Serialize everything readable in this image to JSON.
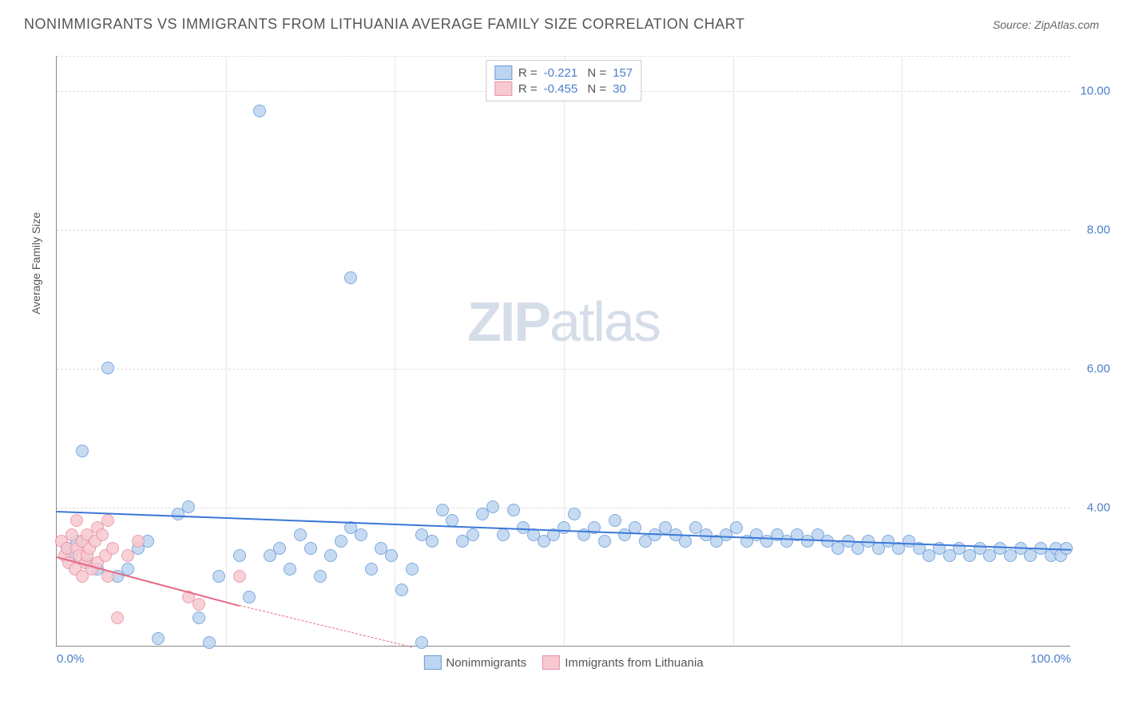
{
  "header": {
    "title": "NONIMMIGRANTS VS IMMIGRANTS FROM LITHUANIA AVERAGE FAMILY SIZE CORRELATION CHART",
    "source": "Source: ZipAtlas.com"
  },
  "watermark": {
    "zip": "ZIP",
    "atlas": "atlas"
  },
  "chart": {
    "type": "scatter",
    "ylabel": "Average Family Size",
    "xlim": [
      0,
      100
    ],
    "ylim": [
      2,
      10.5
    ],
    "yticks": [
      4,
      6,
      8,
      10
    ],
    "ytick_labels": [
      "4.00",
      "6.00",
      "8.00",
      "10.00"
    ],
    "xticks": [
      0,
      16.67,
      33.33,
      50,
      66.67,
      83.33,
      100
    ],
    "xtick_labels_shown": {
      "0": "0.0%",
      "100": "100.0%"
    },
    "background_color": "#ffffff",
    "grid_color": "#dddddd",
    "axis_color": "#888888",
    "marker_radius": 8,
    "series": {
      "nonimmigrants": {
        "label": "Nonimmigrants",
        "fill_color": "#bdd5f0",
        "stroke_color": "#6a9ad8",
        "trend_color": "#3b78d8",
        "R": "-0.221",
        "N": "157",
        "trend": {
          "x0": 0,
          "y0": 3.95,
          "x1": 100,
          "y1": 3.4
        },
        "points": [
          [
            1,
            3.4
          ],
          [
            1.5,
            3.3
          ],
          [
            2,
            3.5
          ],
          [
            2.5,
            4.8
          ],
          [
            3,
            3.2
          ],
          [
            4,
            3.1
          ],
          [
            5,
            6.0
          ],
          [
            6,
            3.0
          ],
          [
            7,
            3.1
          ],
          [
            8,
            3.4
          ],
          [
            9,
            3.5
          ],
          [
            10,
            2.1
          ],
          [
            12,
            3.9
          ],
          [
            13,
            4.0
          ],
          [
            14,
            2.4
          ],
          [
            15,
            2.05
          ],
          [
            16,
            3.0
          ],
          [
            18,
            3.3
          ],
          [
            19,
            2.7
          ],
          [
            20,
            9.7
          ],
          [
            21,
            3.3
          ],
          [
            22,
            3.4
          ],
          [
            23,
            3.1
          ],
          [
            24,
            3.6
          ],
          [
            25,
            3.4
          ],
          [
            26,
            3.0
          ],
          [
            27,
            3.3
          ],
          [
            28,
            3.5
          ],
          [
            29,
            3.7
          ],
          [
            29,
            7.3
          ],
          [
            30,
            3.6
          ],
          [
            31,
            3.1
          ],
          [
            32,
            3.4
          ],
          [
            33,
            3.3
          ],
          [
            34,
            2.8
          ],
          [
            35,
            3.1
          ],
          [
            36,
            2.05
          ],
          [
            36,
            3.6
          ],
          [
            37,
            3.5
          ],
          [
            38,
            3.95
          ],
          [
            39,
            3.8
          ],
          [
            40,
            3.5
          ],
          [
            41,
            3.6
          ],
          [
            42,
            3.9
          ],
          [
            43,
            4.0
          ],
          [
            44,
            3.6
          ],
          [
            45,
            3.95
          ],
          [
            46,
            3.7
          ],
          [
            47,
            3.6
          ],
          [
            48,
            3.5
          ],
          [
            49,
            3.6
          ],
          [
            50,
            3.7
          ],
          [
            51,
            3.9
          ],
          [
            52,
            3.6
          ],
          [
            53,
            3.7
          ],
          [
            54,
            3.5
          ],
          [
            55,
            3.8
          ],
          [
            56,
            3.6
          ],
          [
            57,
            3.7
          ],
          [
            58,
            3.5
          ],
          [
            59,
            3.6
          ],
          [
            60,
            3.7
          ],
          [
            61,
            3.6
          ],
          [
            62,
            3.5
          ],
          [
            63,
            3.7
          ],
          [
            64,
            3.6
          ],
          [
            65,
            3.5
          ],
          [
            66,
            3.6
          ],
          [
            67,
            3.7
          ],
          [
            68,
            3.5
          ],
          [
            69,
            3.6
          ],
          [
            70,
            3.5
          ],
          [
            71,
            3.6
          ],
          [
            72,
            3.5
          ],
          [
            73,
            3.6
          ],
          [
            74,
            3.5
          ],
          [
            75,
            3.6
          ],
          [
            76,
            3.5
          ],
          [
            77,
            3.4
          ],
          [
            78,
            3.5
          ],
          [
            79,
            3.4
          ],
          [
            80,
            3.5
          ],
          [
            81,
            3.4
          ],
          [
            82,
            3.5
          ],
          [
            83,
            3.4
          ],
          [
            84,
            3.5
          ],
          [
            85,
            3.4
          ],
          [
            86,
            3.3
          ],
          [
            87,
            3.4
          ],
          [
            88,
            3.3
          ],
          [
            89,
            3.4
          ],
          [
            90,
            3.3
          ],
          [
            91,
            3.4
          ],
          [
            92,
            3.3
          ],
          [
            93,
            3.4
          ],
          [
            94,
            3.3
          ],
          [
            95,
            3.4
          ],
          [
            96,
            3.3
          ],
          [
            97,
            3.4
          ],
          [
            98,
            3.3
          ],
          [
            98.5,
            3.4
          ],
          [
            99,
            3.3
          ],
          [
            99.5,
            3.4
          ]
        ]
      },
      "immigrants": {
        "label": "Immigrants from Lithuania",
        "fill_color": "#f7c9d1",
        "stroke_color": "#e890a3",
        "trend_color": "#e86a88",
        "R": "-0.455",
        "N": "30",
        "trend_solid": {
          "x0": 0,
          "y0": 3.3,
          "x1": 18,
          "y1": 2.6
        },
        "trend_dash": {
          "x0": 18,
          "y0": 2.6,
          "x1": 35,
          "y1": 2.0
        },
        "points": [
          [
            0.5,
            3.5
          ],
          [
            0.8,
            3.3
          ],
          [
            1,
            3.4
          ],
          [
            1.2,
            3.2
          ],
          [
            1.5,
            3.6
          ],
          [
            1.8,
            3.1
          ],
          [
            2,
            3.8
          ],
          [
            2,
            3.4
          ],
          [
            2.2,
            3.3
          ],
          [
            2.5,
            3.5
          ],
          [
            2.5,
            3.0
          ],
          [
            2.8,
            3.2
          ],
          [
            3,
            3.6
          ],
          [
            3,
            3.3
          ],
          [
            3.2,
            3.4
          ],
          [
            3.5,
            3.1
          ],
          [
            3.8,
            3.5
          ],
          [
            4,
            3.7
          ],
          [
            4,
            3.2
          ],
          [
            4.5,
            3.6
          ],
          [
            4.8,
            3.3
          ],
          [
            5,
            3.8
          ],
          [
            5,
            3.0
          ],
          [
            5.5,
            3.4
          ],
          [
            6,
            2.4
          ],
          [
            7,
            3.3
          ],
          [
            8,
            3.5
          ],
          [
            13,
            2.7
          ],
          [
            14,
            2.6
          ],
          [
            18,
            3.0
          ]
        ]
      }
    }
  }
}
